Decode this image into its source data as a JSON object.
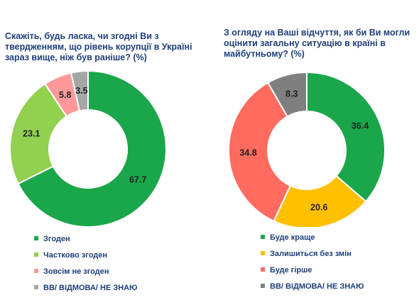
{
  "chart_data": [
    {
      "type": "pie",
      "title": "Скажіть, будь ласка, чи згодні Ви з твердженням, що рівень корупції в Україні зараз вище, ніж був раніше? (%)",
      "categories": [
        "Згоден",
        "Частково згоден",
        "Зовсім не згоден",
        "ВВ/ ВІДМОВА/ НЕ ЗНАЮ"
      ],
      "values": [
        67.7,
        23.1,
        5.8,
        3.5
      ],
      "value_labels": [
        "67.7",
        "23.1",
        "5.8",
        "3.5"
      ],
      "colors": [
        "#1aa64a",
        "#92d050",
        "#ff9999",
        "#a6a6a6"
      ],
      "legend_position": "bottom"
    },
    {
      "type": "pie",
      "title": "З огляду на Ваші відчуття, як би Ви могли оцінити загальну ситуацію в країні в майбутньому? (%)",
      "categories": [
        "Буде краще",
        "Залишиться без змін",
        "Буде гірше",
        "ВВ/ ВІДМОВА/ НЕ ЗНАЮ"
      ],
      "values": [
        36.4,
        20.6,
        34.8,
        8.3
      ],
      "value_labels": [
        "36.4",
        "20.6",
        "34.8",
        "8.3"
      ],
      "colors": [
        "#1aa64a",
        "#ffc000",
        "#ff6b5e",
        "#7f7f7f"
      ],
      "legend_position": "bottom"
    }
  ]
}
